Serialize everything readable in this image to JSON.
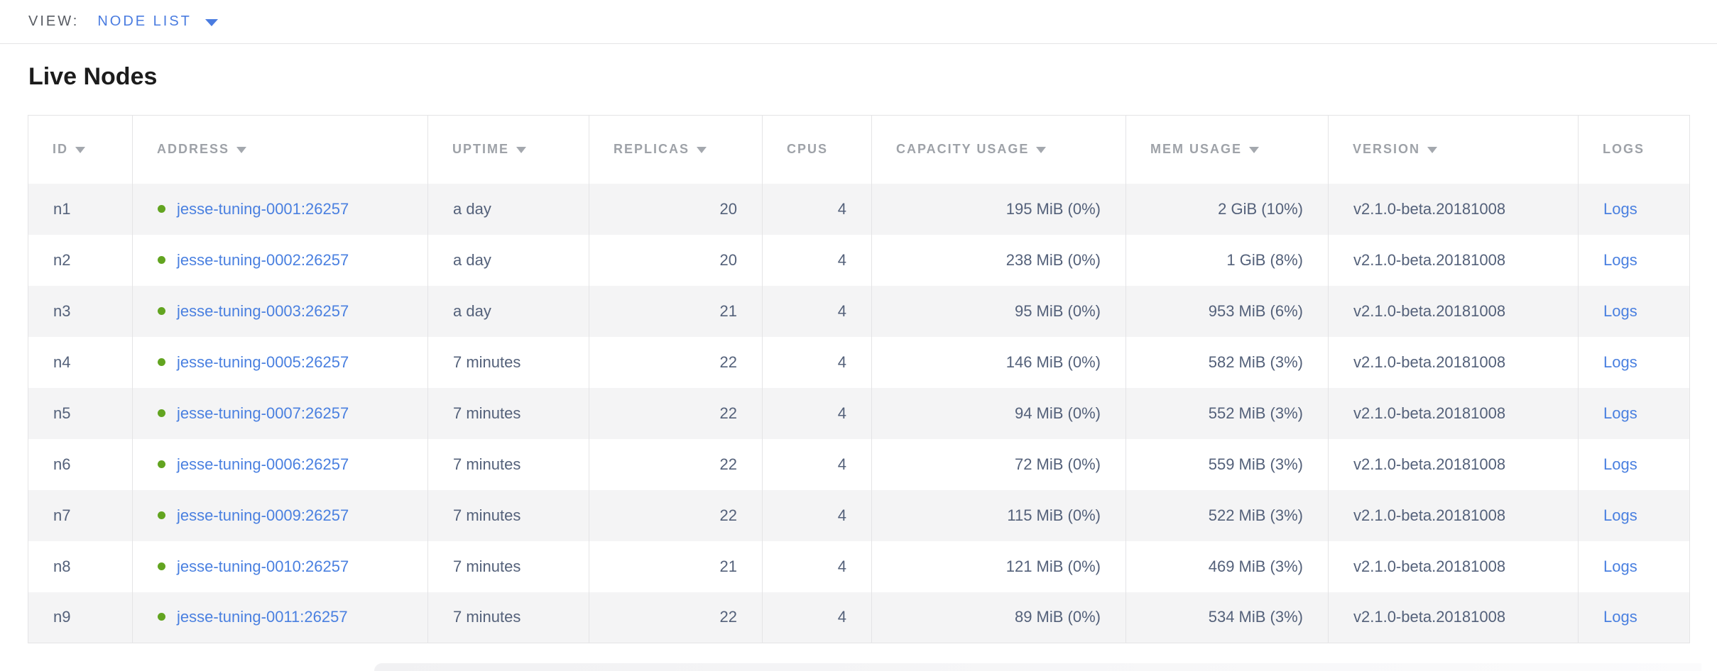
{
  "view_bar": {
    "label": "VIEW:",
    "selected": "NODE LIST"
  },
  "page": {
    "title": "Live Nodes"
  },
  "table": {
    "columns": [
      {
        "key": "id",
        "label": "ID",
        "sortable": true,
        "align": "left"
      },
      {
        "key": "address",
        "label": "ADDRESS",
        "sortable": true,
        "align": "left"
      },
      {
        "key": "uptime",
        "label": "UPTIME",
        "sortable": true,
        "align": "left"
      },
      {
        "key": "replicas",
        "label": "REPLICAS",
        "sortable": true,
        "align": "right"
      },
      {
        "key": "cpus",
        "label": "CPUS",
        "sortable": false,
        "align": "right"
      },
      {
        "key": "capacity",
        "label": "CAPACITY USAGE",
        "sortable": true,
        "align": "right"
      },
      {
        "key": "mem",
        "label": "MEM USAGE",
        "sortable": true,
        "align": "right"
      },
      {
        "key": "version",
        "label": "VERSION",
        "sortable": true,
        "align": "left"
      },
      {
        "key": "logs",
        "label": "LOGS",
        "sortable": false,
        "align": "left"
      }
    ],
    "rows": [
      {
        "id": "n1",
        "status": "live",
        "address": "jesse-tuning-0001:26257",
        "uptime": "a day",
        "replicas": "20",
        "cpus": "4",
        "capacity": "195 MiB (0%)",
        "mem": "2 GiB (10%)",
        "version": "v2.1.0-beta.20181008",
        "logs": "Logs"
      },
      {
        "id": "n2",
        "status": "live",
        "address": "jesse-tuning-0002:26257",
        "uptime": "a day",
        "replicas": "20",
        "cpus": "4",
        "capacity": "238 MiB (0%)",
        "mem": "1 GiB (8%)",
        "version": "v2.1.0-beta.20181008",
        "logs": "Logs"
      },
      {
        "id": "n3",
        "status": "live",
        "address": "jesse-tuning-0003:26257",
        "uptime": "a day",
        "replicas": "21",
        "cpus": "4",
        "capacity": "95 MiB (0%)",
        "mem": "953 MiB (6%)",
        "version": "v2.1.0-beta.20181008",
        "logs": "Logs"
      },
      {
        "id": "n4",
        "status": "live",
        "address": "jesse-tuning-0005:26257",
        "uptime": "7 minutes",
        "replicas": "22",
        "cpus": "4",
        "capacity": "146 MiB (0%)",
        "mem": "582 MiB (3%)",
        "version": "v2.1.0-beta.20181008",
        "logs": "Logs"
      },
      {
        "id": "n5",
        "status": "live",
        "address": "jesse-tuning-0007:26257",
        "uptime": "7 minutes",
        "replicas": "22",
        "cpus": "4",
        "capacity": "94 MiB (0%)",
        "mem": "552 MiB (3%)",
        "version": "v2.1.0-beta.20181008",
        "logs": "Logs"
      },
      {
        "id": "n6",
        "status": "live",
        "address": "jesse-tuning-0006:26257",
        "uptime": "7 minutes",
        "replicas": "22",
        "cpus": "4",
        "capacity": "72 MiB (0%)",
        "mem": "559 MiB (3%)",
        "version": "v2.1.0-beta.20181008",
        "logs": "Logs"
      },
      {
        "id": "n7",
        "status": "live",
        "address": "jesse-tuning-0009:26257",
        "uptime": "7 minutes",
        "replicas": "22",
        "cpus": "4",
        "capacity": "115 MiB (0%)",
        "mem": "522 MiB (3%)",
        "version": "v2.1.0-beta.20181008",
        "logs": "Logs"
      },
      {
        "id": "n8",
        "status": "live",
        "address": "jesse-tuning-0010:26257",
        "uptime": "7 minutes",
        "replicas": "21",
        "cpus": "4",
        "capacity": "121 MiB (0%)",
        "mem": "469 MiB (3%)",
        "version": "v2.1.0-beta.20181008",
        "logs": "Logs"
      },
      {
        "id": "n9",
        "status": "live",
        "address": "jesse-tuning-0011:26257",
        "uptime": "7 minutes",
        "replicas": "22",
        "cpus": "4",
        "capacity": "89 MiB (0%)",
        "mem": "534 MiB (3%)",
        "version": "v2.1.0-beta.20181008",
        "logs": "Logs"
      }
    ]
  },
  "colors": {
    "accent_blue": "#4a7ce0",
    "link_blue": "#4a80e0",
    "live_green": "#62a420",
    "header_gray": "#9ea2a8",
    "cell_text": "#54617a",
    "row_alt_bg": "#f4f4f5",
    "border": "#e4e4e6"
  }
}
